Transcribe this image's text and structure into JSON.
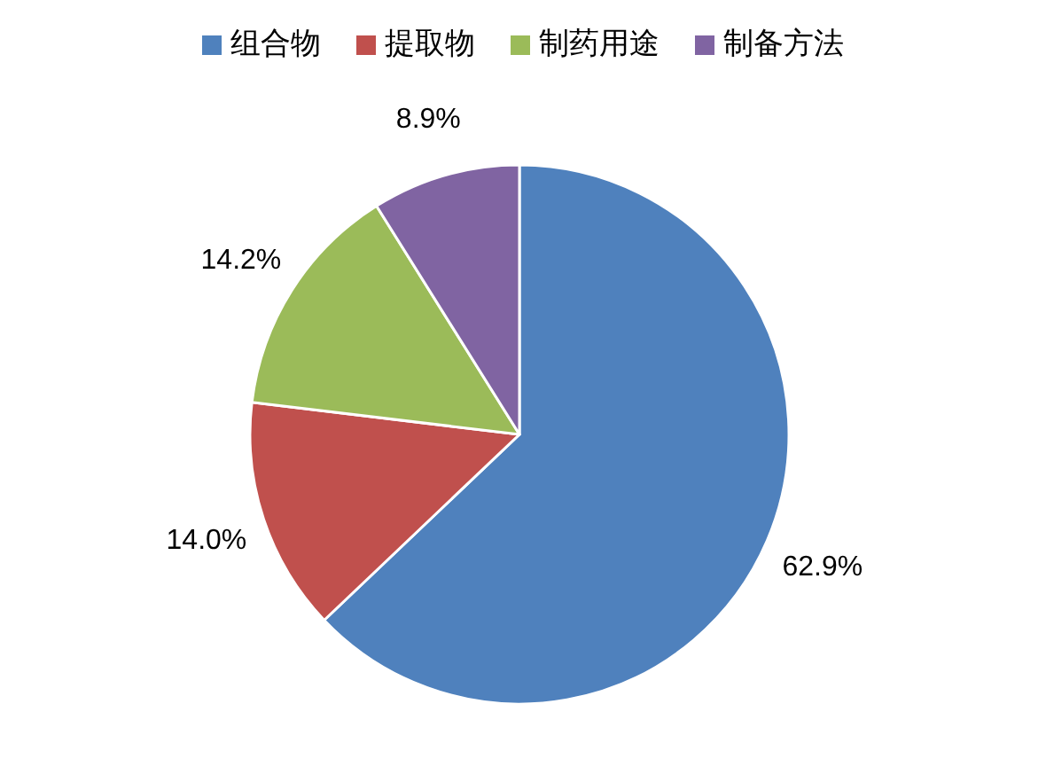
{
  "chart_data": {
    "type": "pie",
    "categories": [
      "组合物",
      "提取物",
      "制药用途",
      "制备方法"
    ],
    "values": [
      62.9,
      14.0,
      14.2,
      8.9
    ],
    "colors": [
      "#4f81bd",
      "#c0504d",
      "#9bbb59",
      "#8064a2"
    ],
    "value_labels": [
      "62.9%",
      "14.0%",
      "14.2%",
      "8.9%"
    ],
    "legend": "top"
  }
}
